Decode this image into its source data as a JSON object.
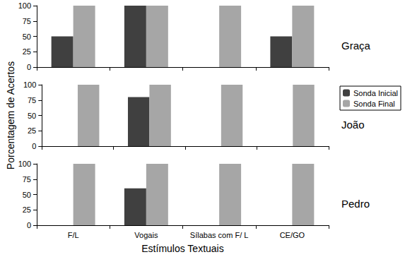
{
  "chart_data": [
    {
      "type": "bar",
      "title": "Graça",
      "categories": [
        "F/L",
        "Vogais",
        "Sílabas com F/ L",
        "CE/GO"
      ],
      "series": [
        {
          "name": "Sonda Inicial",
          "color": "#404040",
          "values": [
            50,
            100,
            0,
            50
          ]
        },
        {
          "name": "Sonda Final",
          "color": "#a6a6a6",
          "values": [
            100,
            100,
            100,
            100
          ]
        }
      ],
      "ylim": [
        0,
        100
      ],
      "yticks": [
        0,
        25,
        50,
        75,
        100
      ],
      "tick_labels": "y"
    },
    {
      "type": "bar",
      "title": "João",
      "y_label": "Porcentagem de Acertos",
      "categories": [
        "F/L",
        "Vogais",
        "Sílabas com F/ L",
        "CE/GO"
      ],
      "series": [
        {
          "name": "Sonda Inicial",
          "color": "#404040",
          "values": [
            0,
            80,
            0,
            0
          ]
        },
        {
          "name": "Sonda Final",
          "color": "#a6a6a6",
          "values": [
            100,
            100,
            100,
            100
          ]
        }
      ],
      "ylim": [
        0,
        100
      ],
      "yticks": [
        0,
        25,
        50,
        75,
        100
      ],
      "tick_labels": "y",
      "legend": "right"
    },
    {
      "type": "bar",
      "title": "Pedro",
      "x_label": "Estímulos Textuais",
      "categories": [
        "F/L",
        "Vogais",
        "Sílabas com F/ L",
        "CE/GO"
      ],
      "series": [
        {
          "name": "Sonda Inicial",
          "color": "#404040",
          "values": [
            0,
            60,
            0,
            0
          ]
        },
        {
          "name": "Sonda Final",
          "color": "#a6a6a6",
          "values": [
            100,
            100,
            100,
            100
          ]
        }
      ],
      "ylim": [
        0,
        100
      ],
      "yticks": [
        0,
        25,
        50,
        75,
        100
      ]
    }
  ]
}
